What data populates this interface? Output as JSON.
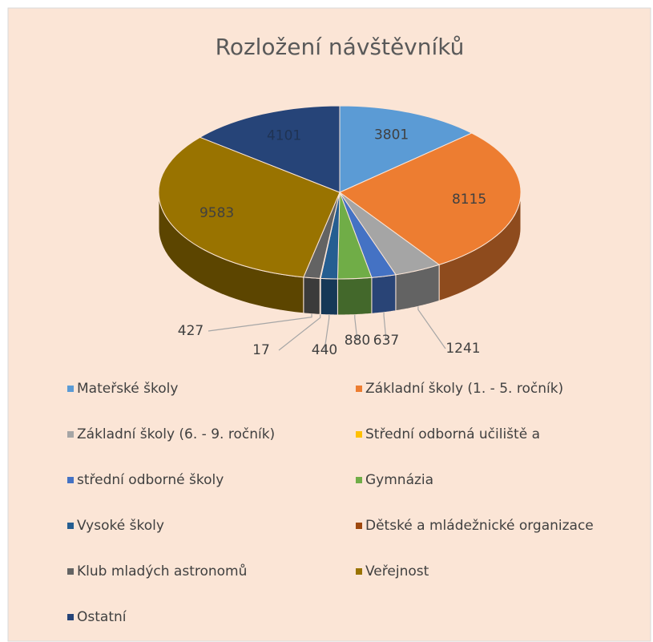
{
  "chart_data": {
    "type": "pie3d",
    "title": "Rozložení návštěvníků",
    "categories": [
      "Mateřské školy",
      "Základní školy (1. - 5. ročník)",
      "Základní školy (6. - 9. ročník)",
      "Střední odborná učiliště a",
      "střední odborné školy",
      "Gymnázia",
      "Vysoké školy",
      "Dětské a mládežnické organizace",
      "Klub mladých astronomů",
      "Veřejnost",
      "Ostatní"
    ],
    "values": [
      3801,
      8115,
      1241,
      null,
      637,
      880,
      440,
      17,
      427,
      9583,
      4101
    ],
    "colors": [
      "#5b9bd5",
      "#ed7d31",
      "#a5a5a5",
      "#ffc000",
      "#4472c4",
      "#70ad47",
      "#255e91",
      "#9e480e",
      "#636363",
      "#997300",
      "#264478"
    ],
    "legend": "bottom"
  }
}
